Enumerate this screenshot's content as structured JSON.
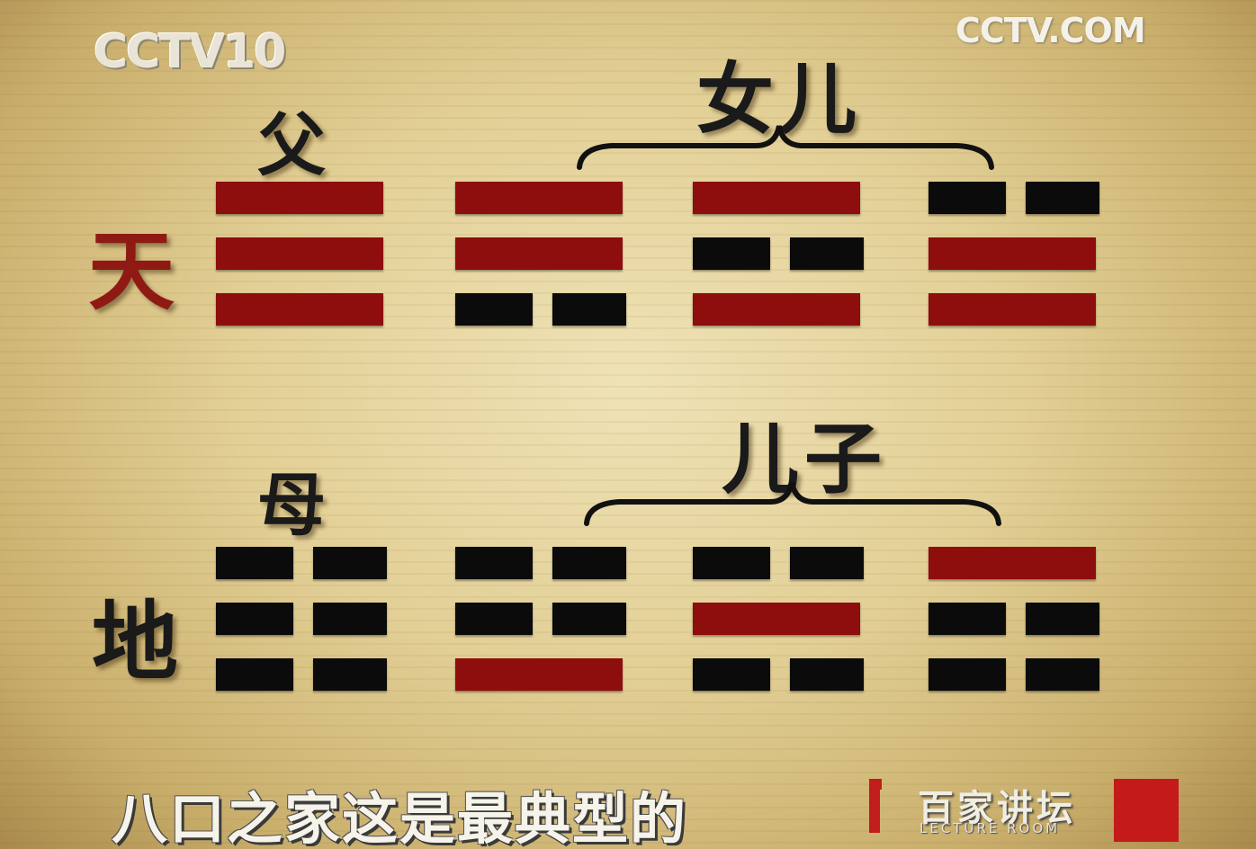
{
  "logos": {
    "channel": "CCTV10",
    "site": "CCTV.COM",
    "program_name": "百家讲坛",
    "program_sub": "LECTURE ROOM"
  },
  "labels": {
    "heaven": "天",
    "earth": "地",
    "father": "父",
    "mother": "母",
    "daughters": "女儿",
    "sons": "儿子"
  },
  "subtitle": "八口之家这是最典型的",
  "colors": {
    "yang_line": "#8e0d0d",
    "yin_line": "#0b0b0b",
    "heaven_char": "#8f1a14"
  },
  "trigrams": [
    {
      "name": "father-trigram",
      "lines": [
        "yang",
        "yang",
        "yang"
      ]
    },
    {
      "name": "daughter-trigram-1",
      "lines": [
        "yang",
        "yang",
        "yin"
      ]
    },
    {
      "name": "daughter-trigram-2",
      "lines": [
        "yang",
        "yin",
        "yang"
      ]
    },
    {
      "name": "daughter-trigram-3",
      "lines": [
        "yin",
        "yang",
        "yang"
      ]
    },
    {
      "name": "mother-trigram",
      "lines": [
        "yin",
        "yin",
        "yin"
      ]
    },
    {
      "name": "son-trigram-1",
      "lines": [
        "yin",
        "yin",
        "yang"
      ]
    },
    {
      "name": "son-trigram-2",
      "lines": [
        "yin",
        "yang",
        "yin"
      ]
    },
    {
      "name": "son-trigram-3",
      "lines": [
        "yang",
        "yin",
        "yin"
      ]
    }
  ]
}
